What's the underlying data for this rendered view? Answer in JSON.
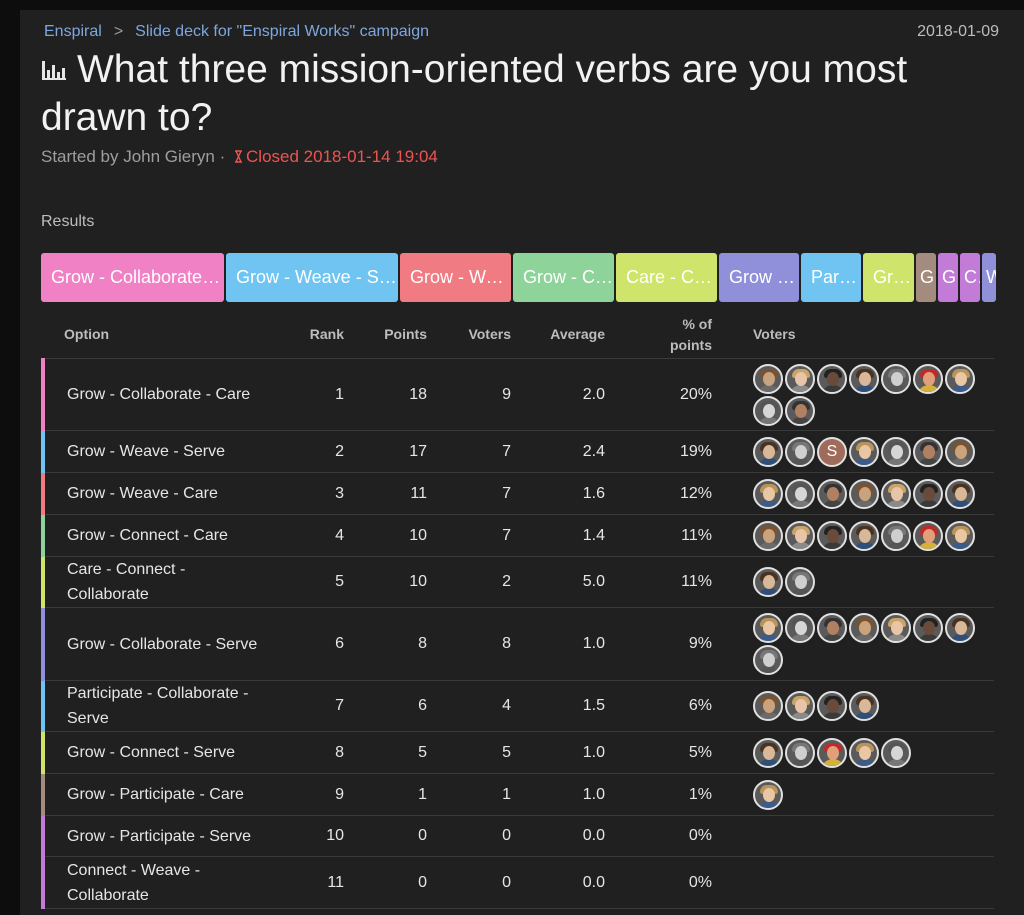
{
  "breadcrumb": {
    "group": "Enspiral",
    "separator": ">",
    "thread": "Slide deck for \"Enspiral Works\" campaign"
  },
  "date": "2018-01-09",
  "poll": {
    "title": "What three mission-oriented verbs are you most drawn to?",
    "started_by": "Started by John Gieryn",
    "dot": "·",
    "closed": "Closed 2018-01-14 19:04"
  },
  "results_label": "Results",
  "bar_segments": [
    {
      "label": "Grow - Collaborate - Care",
      "color": "#f081c5",
      "width": 183
    },
    {
      "label": "Grow - Weave - Serve",
      "color": "#6fc4f1",
      "width": 172
    },
    {
      "label": "Grow - Weave - Care",
      "color": "#f07b82",
      "width": 111
    },
    {
      "label": "Grow - Connect - Care",
      "color": "#8ed39a",
      "width": 101
    },
    {
      "label": "Care - Connect - Collaborate",
      "color": "#cfe46a",
      "width": 101
    },
    {
      "label": "Grow - Collaborate - Serve",
      "color": "#8f8fda",
      "width": 80
    },
    {
      "label": "Participate - Collaborate - Serve",
      "color": "#6fc4f1",
      "width": 60
    },
    {
      "label": "Grow - Connect - Serve",
      "color": "#cfe46a",
      "width": 51
    },
    {
      "label": "Grow - Participate - Care",
      "color": "#a38b7e",
      "width": 20
    },
    {
      "label": "Grow - Participate - Serve",
      "color": "#c37bd8",
      "width": 20
    },
    {
      "label": "Connect - Weave - Collaborate",
      "color": "#c37bd8",
      "width": 20
    },
    {
      "label": "Weave",
      "color": "#8f8fda",
      "width": 14
    }
  ],
  "table": {
    "headers": {
      "option": "Option",
      "rank": "Rank",
      "points": "Points",
      "voters": "Voters",
      "average": "Average",
      "pct_line1": "% of",
      "pct_line2": "points",
      "voter_list": "Voters"
    },
    "rows": [
      {
        "option": "Grow - Collaborate - Care",
        "rank": "1",
        "points": "18",
        "voters": "9",
        "average": "2.0",
        "pct": "20%",
        "color": "#f081c5",
        "height": 72,
        "avatars": 9
      },
      {
        "option": "Grow - Weave - Serve",
        "rank": "2",
        "points": "17",
        "voters": "7",
        "average": "2.4",
        "pct": "19%",
        "color": "#6fc4f1",
        "height": 42,
        "avatars": 7,
        "letter_avatar": {
          "index": 2,
          "letter": "S"
        }
      },
      {
        "option": "Grow - Weave - Care",
        "rank": "3",
        "points": "11",
        "voters": "7",
        "average": "1.6",
        "pct": "12%",
        "color": "#f07b82",
        "height": 42,
        "avatars": 7
      },
      {
        "option": "Grow - Connect - Care",
        "rank": "4",
        "points": "10",
        "voters": "7",
        "average": "1.4",
        "pct": "11%",
        "color": "#8ed39a",
        "height": 42,
        "avatars": 7
      },
      {
        "option": "Care - Connect - Collaborate",
        "rank": "5",
        "points": "10",
        "voters": "2",
        "average": "5.0",
        "pct": "11%",
        "color": "#cfe46a",
        "height": 51,
        "avatars": 2
      },
      {
        "option": "Grow - Collaborate - Serve",
        "rank": "6",
        "points": "8",
        "voters": "8",
        "average": "1.0",
        "pct": "9%",
        "color": "#8f8fda",
        "height": 73,
        "avatars": 8
      },
      {
        "option": "Participate - Collaborate - Serve",
        "rank": "7",
        "points": "6",
        "voters": "4",
        "average": "1.5",
        "pct": "6%",
        "color": "#6fc4f1",
        "height": 51,
        "avatars": 4
      },
      {
        "option": "Grow - Connect - Serve",
        "rank": "8",
        "points": "5",
        "voters": "5",
        "average": "1.0",
        "pct": "5%",
        "color": "#cfe46a",
        "height": 42,
        "avatars": 5
      },
      {
        "option": "Grow - Participate - Care",
        "rank": "9",
        "points": "1",
        "voters": "1",
        "average": "1.0",
        "pct": "1%",
        "color": "#a38b7e",
        "height": 42,
        "avatars": 1
      },
      {
        "option": "Grow - Participate - Serve",
        "rank": "10",
        "points": "0",
        "voters": "0",
        "average": "0.0",
        "pct": "0%",
        "color": "#c37bd8",
        "height": 41,
        "avatars": 0
      },
      {
        "option": "Connect - Weave - Collaborate",
        "rank": "11",
        "points": "0",
        "voters": "0",
        "average": "0.0",
        "pct": "0%",
        "color": "#c37bd8",
        "height": 52,
        "avatars": 0
      }
    ]
  }
}
